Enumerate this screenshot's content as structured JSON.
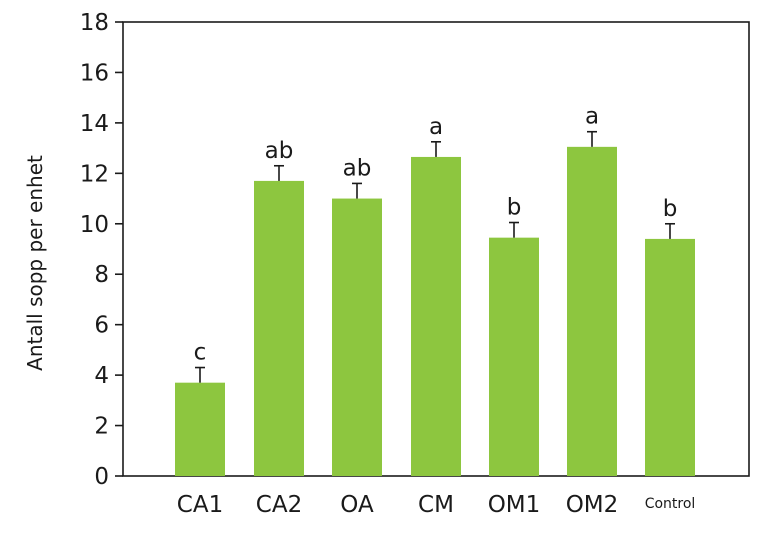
{
  "chart_data": {
    "type": "bar",
    "title": "",
    "xlabel": "",
    "ylabel": "Antall sopp per enhet",
    "ylim": [
      0,
      18
    ],
    "yticks": [
      0,
      2,
      4,
      6,
      8,
      10,
      12,
      14,
      16,
      18
    ],
    "grid": false,
    "legend": "none",
    "categories": [
      "CA1",
      "CA2",
      "OA",
      "CM",
      "OM1",
      "OM2",
      "Control"
    ],
    "values": [
      3.7,
      11.7,
      11.0,
      12.65,
      9.45,
      13.05,
      9.4
    ],
    "errors": [
      0.6,
      0.6,
      0.6,
      0.6,
      0.6,
      0.6,
      0.6
    ],
    "significance_labels": [
      "c",
      "ab",
      "ab",
      "a",
      "b",
      "a",
      "b"
    ],
    "colors": {
      "bar": "#8dc63f",
      "bar_edge": "#6fae24",
      "axis": "#1a1a1a",
      "error_bar": "#1a1a1a"
    }
  }
}
